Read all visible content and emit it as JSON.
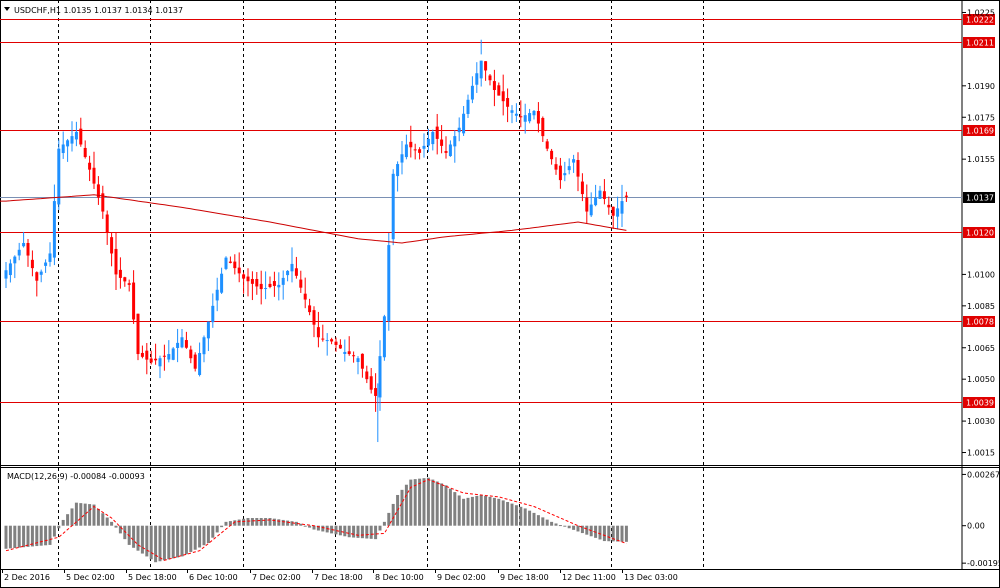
{
  "header": {
    "title": "USDCHF,H1  1.0135 1.0137 1.0134 1.0137",
    "menu_icon": "triangle-down-icon"
  },
  "macd_header": "MACD(12,26,9) -0.00084 -0.00093",
  "colors": {
    "bull": "#1e90ff",
    "bear": "#ff0000",
    "level_line": "#e00000",
    "ma_line": "#cc0000",
    "current_line": "#7a90b4",
    "grid": "#000000",
    "histogram": "#808080",
    "signal": "#ff0000"
  },
  "chart_data": [
    {
      "type": "candlestick",
      "title": "USDCHF,H1",
      "ohlc_current": [
        "1.0135",
        "1.0137",
        "1.0134",
        "1.0137"
      ],
      "y_ticks": [
        "1.0225",
        "1.0190",
        "1.0175",
        "1.0155",
        "1.0137",
        "1.0100",
        "1.0085",
        "1.0065",
        "1.0050",
        "1.0030",
        "1.0015"
      ],
      "ylim": [
        1.001,
        1.023
      ],
      "price_levels": [
        "1.0222",
        "1.0211",
        "1.0169",
        "1.0120",
        "1.0078",
        "1.0039"
      ],
      "current_price": "1.0137",
      "x_labels": [
        "2 Dec 2016",
        "5 Dec 02:00",
        "5 Dec 18:00",
        "6 Dec 10:00",
        "7 Dec 02:00",
        "7 Dec 18:00",
        "8 Dec 10:00",
        "9 Dec 02:00",
        "9 Dec 18:00",
        "12 Dec 11:00",
        "13 Dec 03:00"
      ],
      "anchors": [
        {
          "i": 0,
          "p": 1.0102
        },
        {
          "i": 4,
          "p": 1.0115
        },
        {
          "i": 7,
          "p": 1.0097
        },
        {
          "i": 10,
          "p": 1.011
        },
        {
          "i": 12,
          "p": 1.016
        },
        {
          "i": 16,
          "p": 1.0168
        },
        {
          "i": 19,
          "p": 1.015
        },
        {
          "i": 22,
          "p": 1.013
        },
        {
          "i": 25,
          "p": 1.01
        },
        {
          "i": 28,
          "p": 1.0095
        },
        {
          "i": 30,
          "p": 1.0062
        },
        {
          "i": 33,
          "p": 1.0058
        },
        {
          "i": 37,
          "p": 1.0062
        },
        {
          "i": 40,
          "p": 1.007
        },
        {
          "i": 43,
          "p": 1.0055
        },
        {
          "i": 47,
          "p": 1.0085
        },
        {
          "i": 50,
          "p": 1.0108
        },
        {
          "i": 54,
          "p": 1.0098
        },
        {
          "i": 58,
          "p": 1.0093
        },
        {
          "i": 62,
          "p": 1.0095
        },
        {
          "i": 65,
          "p": 1.0105
        },
        {
          "i": 68,
          "p": 1.0088
        },
        {
          "i": 71,
          "p": 1.007
        },
        {
          "i": 74,
          "p": 1.0068
        },
        {
          "i": 77,
          "p": 1.0063
        },
        {
          "i": 80,
          "p": 1.006
        },
        {
          "i": 83,
          "p": 1.0045
        },
        {
          "i": 84,
          "p": 1.0042
        },
        {
          "i": 86,
          "p": 1.008
        },
        {
          "i": 88,
          "p": 1.0148
        },
        {
          "i": 91,
          "p": 1.0162
        },
        {
          "i": 94,
          "p": 1.0158
        },
        {
          "i": 97,
          "p": 1.0168
        },
        {
          "i": 100,
          "p": 1.0158
        },
        {
          "i": 103,
          "p": 1.017
        },
        {
          "i": 106,
          "p": 1.019
        },
        {
          "i": 108,
          "p": 1.0202
        },
        {
          "i": 111,
          "p": 1.0188
        },
        {
          "i": 114,
          "p": 1.018
        },
        {
          "i": 117,
          "p": 1.0175
        },
        {
          "i": 120,
          "p": 1.0178
        },
        {
          "i": 123,
          "p": 1.016
        },
        {
          "i": 126,
          "p": 1.0145
        },
        {
          "i": 129,
          "p": 1.0155
        },
        {
          "i": 132,
          "p": 1.013
        },
        {
          "i": 135,
          "p": 1.014
        },
        {
          "i": 138,
          "p": 1.0128
        },
        {
          "i": 140,
          "p": 1.0135
        },
        {
          "i": 141,
          "p": 1.0137
        }
      ],
      "ma_anchors": [
        {
          "i": 0,
          "p": 1.0135
        },
        {
          "i": 20,
          "p": 1.0138
        },
        {
          "i": 40,
          "p": 1.0132
        },
        {
          "i": 60,
          "p": 1.0125
        },
        {
          "i": 80,
          "p": 1.0117
        },
        {
          "i": 90,
          "p": 1.0115
        },
        {
          "i": 100,
          "p": 1.0118
        },
        {
          "i": 115,
          "p": 1.0121
        },
        {
          "i": 130,
          "p": 1.0125
        },
        {
          "i": 141,
          "p": 1.0121
        }
      ]
    },
    {
      "type": "bar",
      "title": "MACD(12,26,9)",
      "values_text": [
        "-0.00084",
        "-0.00093"
      ],
      "y_ticks": [
        "0.00267",
        "0.00",
        "-0.00195"
      ],
      "ylim": [
        -0.00215,
        0.0029
      ],
      "macd_anchors": [
        {
          "i": 0,
          "v": -0.0012
        },
        {
          "i": 10,
          "v": -0.001
        },
        {
          "i": 13,
          "v": 0.0003
        },
        {
          "i": 16,
          "v": 0.0012
        },
        {
          "i": 20,
          "v": 0.0011
        },
        {
          "i": 24,
          "v": 0.0002
        },
        {
          "i": 28,
          "v": -0.001
        },
        {
          "i": 34,
          "v": -0.0019
        },
        {
          "i": 40,
          "v": -0.0016
        },
        {
          "i": 46,
          "v": -0.0009
        },
        {
          "i": 50,
          "v": 0.0002
        },
        {
          "i": 55,
          "v": 0.0004
        },
        {
          "i": 60,
          "v": 0.0004
        },
        {
          "i": 66,
          "v": 0.0002
        },
        {
          "i": 70,
          "v": -0.0002
        },
        {
          "i": 78,
          "v": -0.0006
        },
        {
          "i": 84,
          "v": -0.0007
        },
        {
          "i": 86,
          "v": 0.0002
        },
        {
          "i": 89,
          "v": 0.0016
        },
        {
          "i": 92,
          "v": 0.0024
        },
        {
          "i": 96,
          "v": 0.0025
        },
        {
          "i": 100,
          "v": 0.0021
        },
        {
          "i": 104,
          "v": 0.0014
        },
        {
          "i": 108,
          "v": 0.0016
        },
        {
          "i": 112,
          "v": 0.0014
        },
        {
          "i": 118,
          "v": 0.0009
        },
        {
          "i": 124,
          "v": 0.0002
        },
        {
          "i": 130,
          "v": -0.0003
        },
        {
          "i": 136,
          "v": -0.0008
        },
        {
          "i": 141,
          "v": -0.00084
        }
      ],
      "signal_anchors": [
        {
          "i": 0,
          "v": -0.0013
        },
        {
          "i": 12,
          "v": -0.0006
        },
        {
          "i": 20,
          "v": 0.001
        },
        {
          "i": 24,
          "v": 0.0004
        },
        {
          "i": 30,
          "v": -0.001
        },
        {
          "i": 36,
          "v": -0.0018
        },
        {
          "i": 44,
          "v": -0.0013
        },
        {
          "i": 52,
          "v": 0.0002
        },
        {
          "i": 60,
          "v": 0.0003
        },
        {
          "i": 70,
          "v": 0.0
        },
        {
          "i": 80,
          "v": -0.0005
        },
        {
          "i": 86,
          "v": -0.0004
        },
        {
          "i": 92,
          "v": 0.002
        },
        {
          "i": 96,
          "v": 0.0024
        },
        {
          "i": 104,
          "v": 0.0017
        },
        {
          "i": 112,
          "v": 0.0015
        },
        {
          "i": 120,
          "v": 0.001
        },
        {
          "i": 130,
          "v": 0.0
        },
        {
          "i": 141,
          "v": -0.00093
        }
      ]
    }
  ]
}
